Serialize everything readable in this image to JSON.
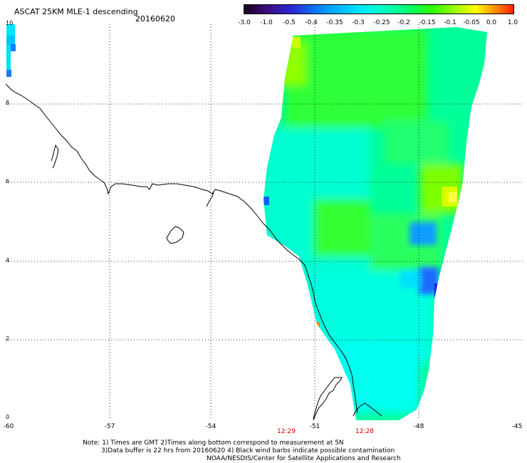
{
  "header": {
    "title": "ASCAT 25KM MLE-1 descending",
    "date": "20160620"
  },
  "colorbar": {
    "ticks": [
      "-3.0",
      "-1.0",
      "-0.5",
      "-0.4",
      "-0.35",
      "-0.3",
      "-0.25",
      "-0.2",
      "-0.15",
      "-0.1",
      "-0.05",
      "0.0",
      "1.0"
    ]
  },
  "axes": {
    "lon_labels": [
      "-60",
      "-57",
      "-54",
      "-51",
      "-48",
      "-45"
    ],
    "lat_labels": [
      "10",
      "8",
      "6",
      "4",
      "2",
      "0"
    ]
  },
  "times": [
    "12:29",
    "12:28"
  ],
  "notes": [
    "Note: 1) Times are GMT 2)Times along bottom correspond to measurement at 5N",
    "3)Data buffer is 22 hrs from 20160620 4) Black wind barbs indicate possible contamination",
    "NOAA/NESDIS/Center for Satellite Applications and Research"
  ]
}
